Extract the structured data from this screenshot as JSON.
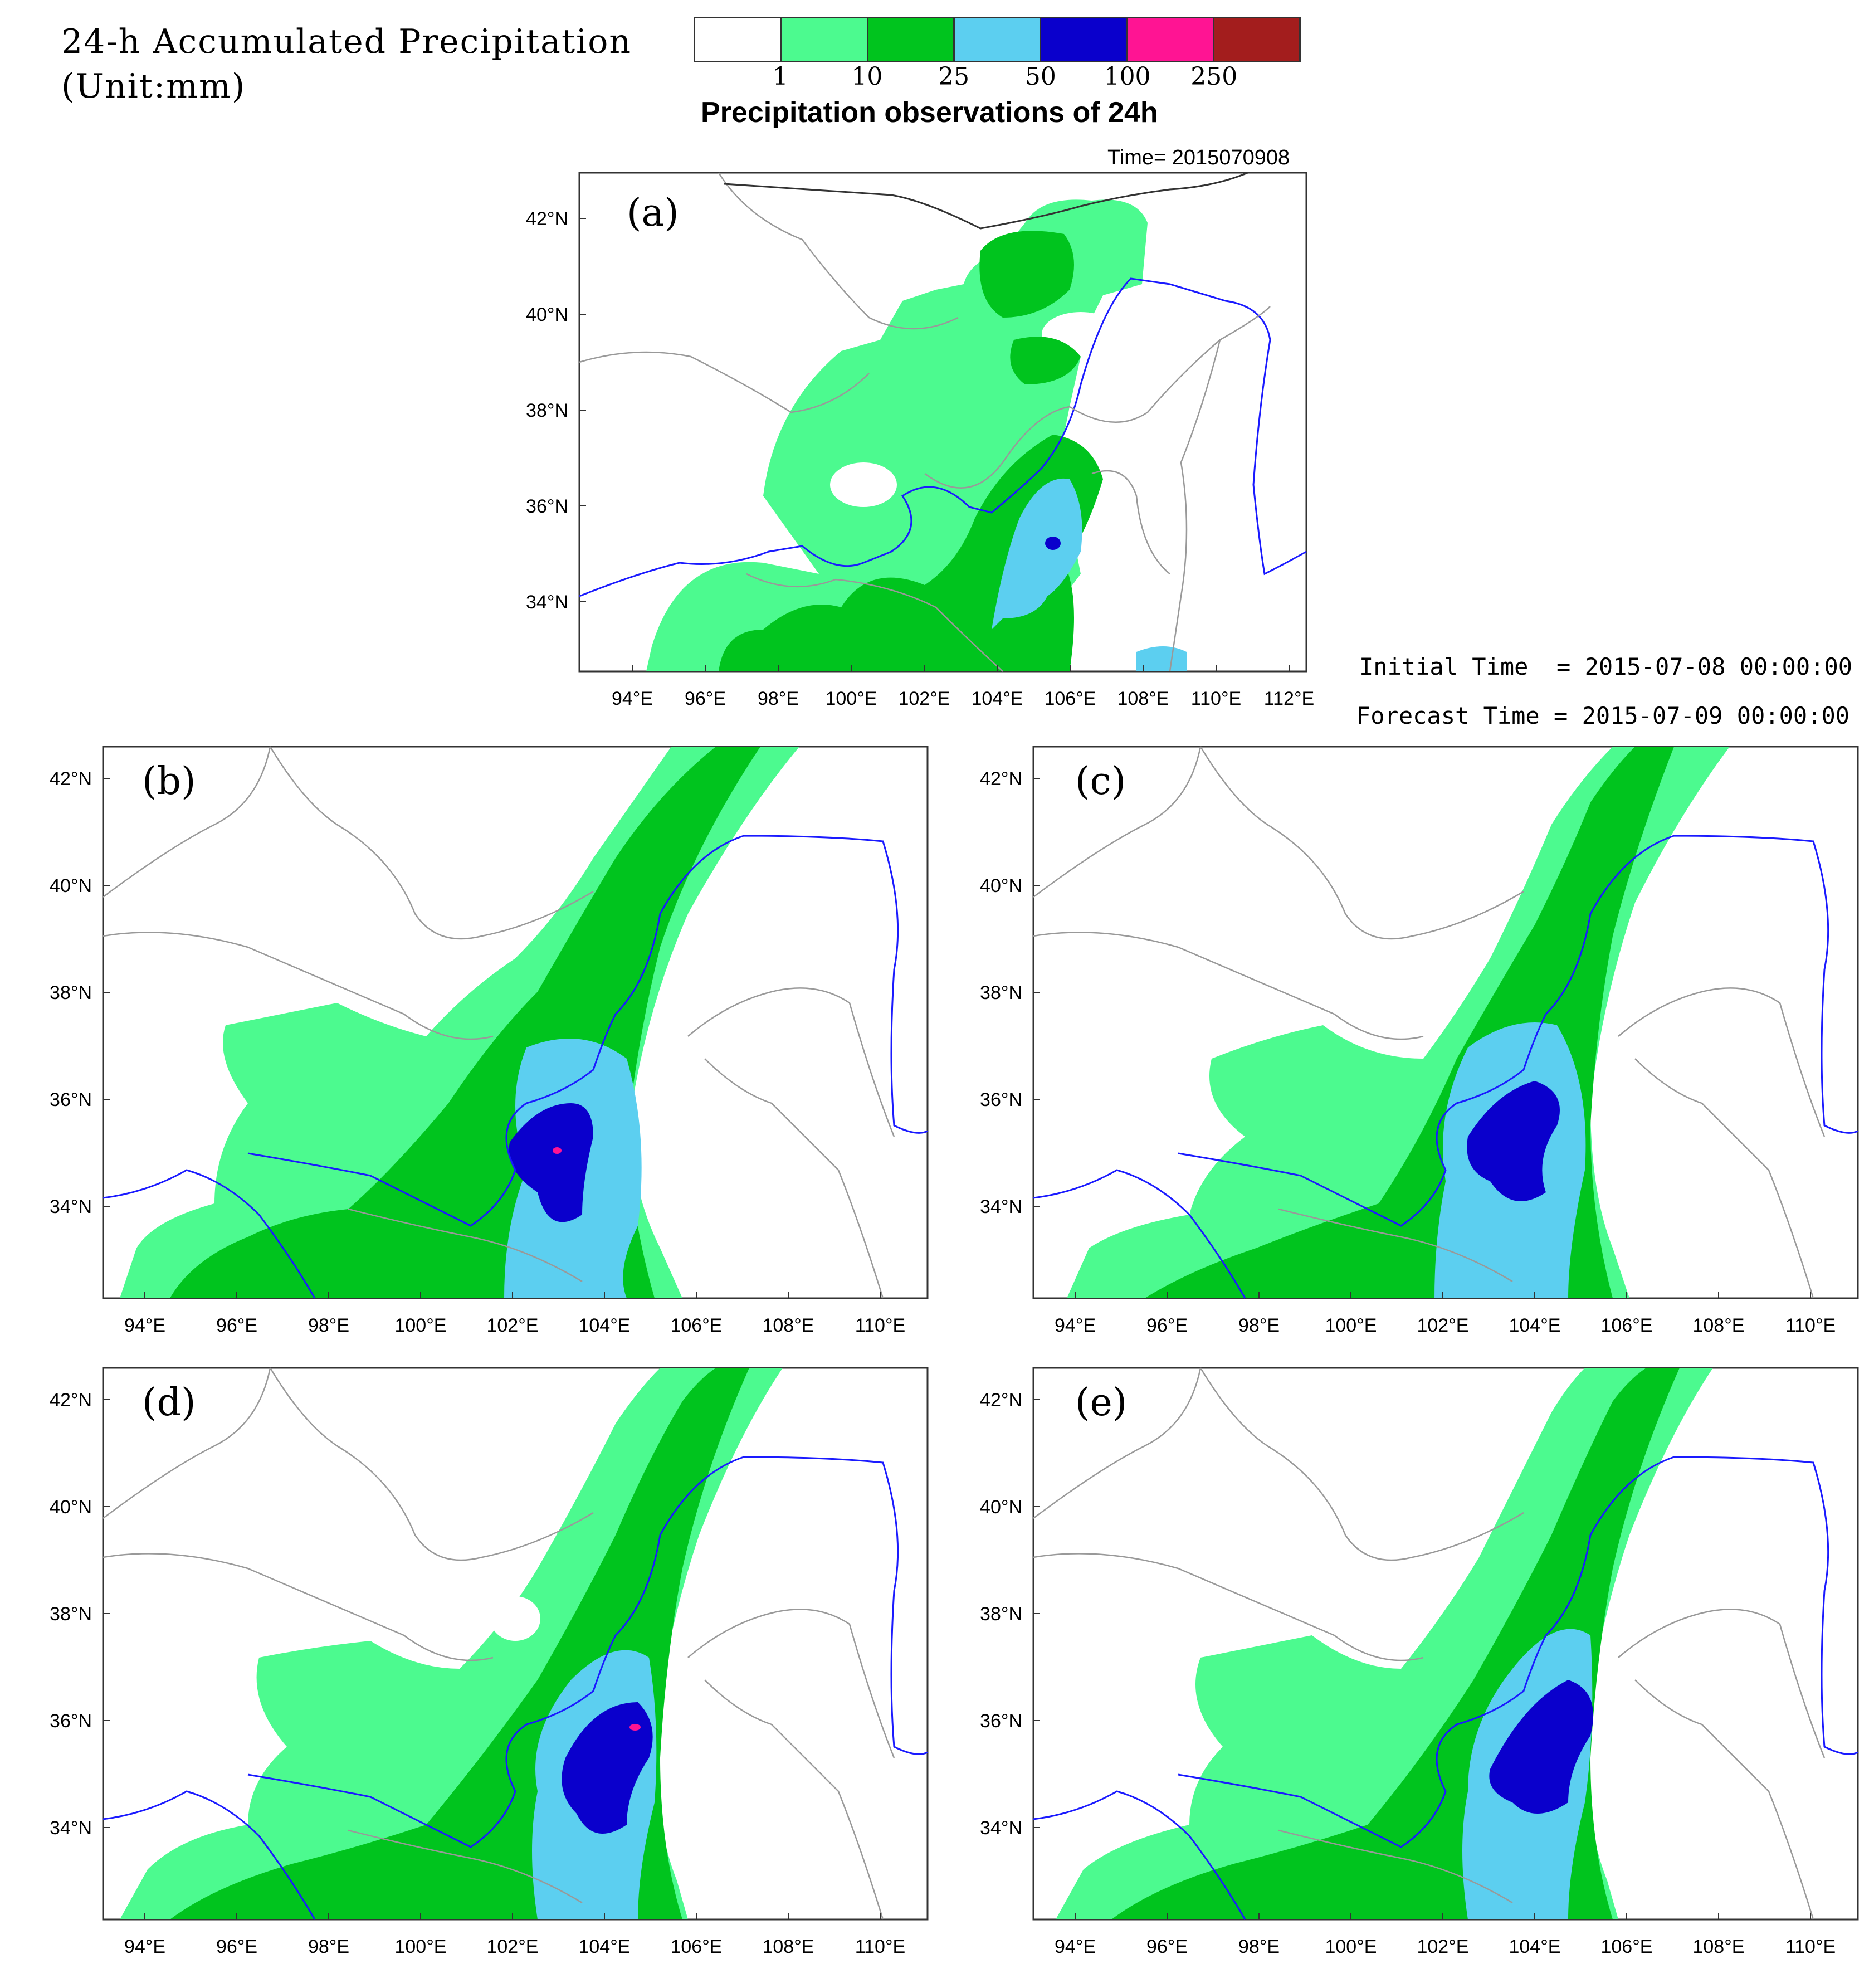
{
  "figure": {
    "title_line1": "24-h Accumulated Precipitation",
    "title_line2": "(Unit:mm)",
    "colorbar_title": "Precipitation observations of 24h",
    "time_label": "Time= 2015070908",
    "initial_time": "Initial Time  = 2015-07-08 00:00:00",
    "forecast_time": "Forecast Time = 2015-07-09 00:00:00"
  },
  "colorbar": {
    "levels": [
      "1",
      "10",
      "25",
      "50",
      "100",
      "250"
    ],
    "colors": [
      "#ffffff",
      "#4cfa8f",
      "#00c41e",
      "#5ccff0",
      "#0a00cc",
      "#ff1493",
      "#a31d1d"
    ]
  },
  "colors": {
    "light_green": "#4cfa8f",
    "green": "#00c41e",
    "sky_blue": "#5ccff0",
    "dark_blue": "#0a00cc",
    "magenta": "#ff1493",
    "river_blue": "#1a1aff",
    "boundary_gray": "#999999",
    "border_dark": "#333333"
  },
  "panels": [
    {
      "id": "a",
      "label": "(a)",
      "lon_ticks": [
        "94°E",
        "96°E",
        "98°E",
        "100°E",
        "102°E",
        "104°E",
        "106°E",
        "108°E",
        "110°E",
        "112°E"
      ],
      "lat_ticks": [
        "34°N",
        "36°N",
        "38°N",
        "40°N",
        "42°N"
      ]
    },
    {
      "id": "b",
      "label": "(b)",
      "lon_ticks": [
        "94°E",
        "96°E",
        "98°E",
        "100°E",
        "102°E",
        "104°E",
        "106°E",
        "108°E",
        "110°E"
      ],
      "lat_ticks": [
        "34°N",
        "36°N",
        "38°N",
        "40°N",
        "42°N"
      ]
    },
    {
      "id": "c",
      "label": "(c)",
      "lon_ticks": [
        "94°E",
        "96°E",
        "98°E",
        "100°E",
        "102°E",
        "104°E",
        "106°E",
        "108°E",
        "110°E"
      ],
      "lat_ticks": [
        "34°N",
        "36°N",
        "38°N",
        "40°N",
        "42°N"
      ]
    },
    {
      "id": "d",
      "label": "(d)",
      "lon_ticks": [
        "94°E",
        "96°E",
        "98°E",
        "100°E",
        "102°E",
        "104°E",
        "106°E",
        "108°E",
        "110°E"
      ],
      "lat_ticks": [
        "34°N",
        "36°N",
        "38°N",
        "40°N",
        "42°N"
      ]
    },
    {
      "id": "e",
      "label": "(e)",
      "lon_ticks": [
        "94°E",
        "96°E",
        "98°E",
        "100°E",
        "102°E",
        "104°E",
        "106°E",
        "108°E",
        "110°E"
      ],
      "lat_ticks": [
        "34°N",
        "36°N",
        "38°N",
        "40°N",
        "42°N"
      ]
    }
  ]
}
